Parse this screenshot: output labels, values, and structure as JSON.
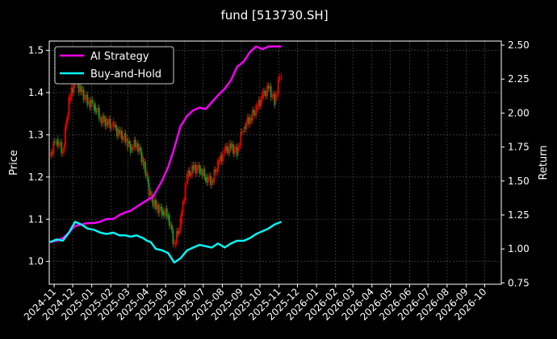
{
  "chart_data": {
    "type": "line",
    "title": "fund [513730.SH]",
    "left_axis": {
      "label": "Price",
      "ticks": [
        1.0,
        1.1,
        1.2,
        1.3,
        1.4,
        1.5
      ],
      "tick_labels": [
        "1.0",
        "1.1",
        "1.2",
        "1.3",
        "1.4",
        "1.5"
      ],
      "ylim": [
        0.946,
        1.522
      ]
    },
    "right_axis": {
      "label": "Return",
      "ticks": [
        0.75,
        1.0,
        1.25,
        1.5,
        1.75,
        2.0,
        2.25,
        2.5
      ],
      "tick_labels": [
        "0.75",
        "1.00",
        "1.25",
        "1.50",
        "1.75",
        "2.00",
        "2.25",
        "2.50"
      ],
      "ylim": [
        0.74,
        2.53
      ]
    },
    "x_axis": {
      "ticks": [
        "2024-11",
        "2024-12",
        "2025-01",
        "2025-02",
        "2025-03",
        "2025-04",
        "2025-05",
        "2025-06",
        "2025-07",
        "2025-08",
        "2025-09",
        "2025-10",
        "2025-11",
        "2025-12",
        "2026-01",
        "2026-02",
        "2026-03",
        "2026-04",
        "2026-05",
        "2026-06",
        "2026-07",
        "2026-08",
        "2026-09",
        "2026-10"
      ],
      "xlim": [
        "2024-10-24",
        "2026-10-28"
      ]
    },
    "grid": true,
    "legend": {
      "placement": "top-left",
      "entries": [
        "AI Strategy",
        "Buy-and-Hold"
      ]
    },
    "series": [
      {
        "name": "AI Strategy",
        "axis": "right",
        "color": "#ff00ff",
        "x": [
          "2024-10-25",
          "2024-11-05",
          "2024-11-15",
          "2024-11-25",
          "2024-12-05",
          "2024-12-15",
          "2024-12-25",
          "2025-01-05",
          "2025-01-15",
          "2025-01-25",
          "2025-02-05",
          "2025-02-15",
          "2025-02-25",
          "2025-03-05",
          "2025-03-15",
          "2025-03-25",
          "2025-04-05",
          "2025-04-10",
          "2025-04-15",
          "2025-04-25",
          "2025-05-05",
          "2025-05-15",
          "2025-05-25",
          "2025-06-05",
          "2025-06-15",
          "2025-06-25",
          "2025-07-05",
          "2025-07-15",
          "2025-07-25",
          "2025-08-05",
          "2025-08-15",
          "2025-08-25",
          "2025-09-05",
          "2025-09-15",
          "2025-09-25",
          "2025-10-05",
          "2025-10-15",
          "2025-10-25",
          "2025-11-05"
        ],
        "values": [
          1.05,
          1.06,
          1.08,
          1.12,
          1.17,
          1.18,
          1.19,
          1.19,
          1.2,
          1.22,
          1.22,
          1.25,
          1.27,
          1.28,
          1.31,
          1.34,
          1.37,
          1.38,
          1.42,
          1.5,
          1.6,
          1.74,
          1.9,
          1.98,
          2.02,
          2.04,
          2.03,
          2.08,
          2.13,
          2.18,
          2.24,
          2.34,
          2.38,
          2.45,
          2.49,
          2.47,
          2.49,
          2.49,
          2.49
        ]
      },
      {
        "name": "Buy-and-Hold",
        "axis": "right",
        "color": "#00ffff",
        "x": [
          "2024-10-25",
          "2024-11-05",
          "2024-11-15",
          "2024-11-25",
          "2024-12-05",
          "2024-12-15",
          "2024-12-25",
          "2025-01-05",
          "2025-01-15",
          "2025-01-25",
          "2025-02-05",
          "2025-02-15",
          "2025-02-25",
          "2025-03-05",
          "2025-03-15",
          "2025-03-25",
          "2025-04-01",
          "2025-04-07",
          "2025-04-15",
          "2025-04-25",
          "2025-05-05",
          "2025-05-15",
          "2025-05-25",
          "2025-06-05",
          "2025-06-15",
          "2025-06-25",
          "2025-07-05",
          "2025-07-15",
          "2025-07-25",
          "2025-08-05",
          "2025-08-15",
          "2025-08-25",
          "2025-09-05",
          "2025-09-15",
          "2025-09-25",
          "2025-10-05",
          "2025-10-15",
          "2025-10-25",
          "2025-11-05"
        ],
        "values": [
          1.05,
          1.07,
          1.06,
          1.12,
          1.2,
          1.18,
          1.15,
          1.14,
          1.12,
          1.11,
          1.12,
          1.1,
          1.1,
          1.09,
          1.1,
          1.08,
          1.06,
          1.05,
          1.0,
          0.99,
          0.97,
          0.9,
          0.93,
          0.99,
          1.01,
          1.03,
          1.02,
          1.01,
          1.04,
          1.01,
          1.04,
          1.06,
          1.06,
          1.08,
          1.11,
          1.13,
          1.15,
          1.18,
          1.2
        ]
      },
      {
        "name": "",
        "axis": "left",
        "kind": "price-candles",
        "color_up": "#dd0000",
        "color_down": "#1f8a1f",
        "x": [
          "2024-10-25",
          "2024-11-05",
          "2024-11-15",
          "2024-11-25",
          "2024-12-05",
          "2024-12-15",
          "2024-12-25",
          "2025-01-05",
          "2025-01-15",
          "2025-01-25",
          "2025-02-05",
          "2025-02-15",
          "2025-02-25",
          "2025-03-05",
          "2025-03-15",
          "2025-03-25",
          "2025-04-01",
          "2025-04-07",
          "2025-04-15",
          "2025-04-25",
          "2025-05-05",
          "2025-05-15",
          "2025-05-25",
          "2025-06-05",
          "2025-06-15",
          "2025-06-25",
          "2025-07-05",
          "2025-07-15",
          "2025-07-25",
          "2025-08-05",
          "2025-08-15",
          "2025-08-25",
          "2025-09-05",
          "2025-09-15",
          "2025-09-25",
          "2025-10-05",
          "2025-10-15",
          "2025-10-25",
          "2025-11-05"
        ],
        "values": [
          1.25,
          1.29,
          1.26,
          1.38,
          1.43,
          1.4,
          1.38,
          1.37,
          1.34,
          1.33,
          1.32,
          1.3,
          1.29,
          1.27,
          1.28,
          1.24,
          1.2,
          1.15,
          1.13,
          1.12,
          1.11,
          1.04,
          1.09,
          1.2,
          1.22,
          1.22,
          1.2,
          1.19,
          1.23,
          1.26,
          1.27,
          1.26,
          1.32,
          1.34,
          1.36,
          1.39,
          1.41,
          1.38,
          1.45
        ]
      }
    ]
  }
}
